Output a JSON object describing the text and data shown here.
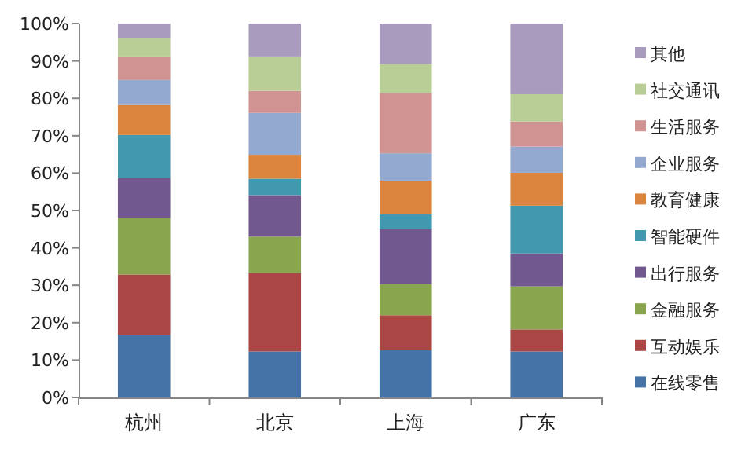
{
  "chart_data": {
    "type": "bar",
    "stacked": true,
    "legend": "right",
    "categories": [
      "杭州",
      "北京",
      "上海",
      "广东"
    ],
    "ylim": [
      0,
      100
    ],
    "yticks": [
      {
        "value": 0,
        "label": "0%"
      },
      {
        "value": 10,
        "label": "10%"
      },
      {
        "value": 20,
        "label": "20%"
      },
      {
        "value": 30,
        "label": "30%"
      },
      {
        "value": 40,
        "label": "40%"
      },
      {
        "value": 50,
        "label": "50%"
      },
      {
        "value": 60,
        "label": "60%"
      },
      {
        "value": 70,
        "label": "70%"
      },
      {
        "value": 80,
        "label": "80%"
      },
      {
        "value": 90,
        "label": "90%"
      },
      {
        "value": 100,
        "label": "100%"
      }
    ],
    "series": [
      {
        "name": "在线零售",
        "color": "#4572a7",
        "values": [
          16.8,
          12.3,
          12.6,
          12.3
        ]
      },
      {
        "name": "互动娱乐",
        "color": "#aa4643",
        "values": [
          16.1,
          21.0,
          9.4,
          5.9
        ]
      },
      {
        "name": "金融服务",
        "color": "#89a54e",
        "values": [
          15.1,
          9.7,
          8.3,
          11.5
        ]
      },
      {
        "name": "出行服务",
        "color": "#71588f",
        "values": [
          10.7,
          11.1,
          14.7,
          8.8
        ]
      },
      {
        "name": "智能硬件",
        "color": "#4198af",
        "values": [
          11.5,
          4.4,
          4.0,
          12.8
        ]
      },
      {
        "name": "教育健康",
        "color": "#db843d",
        "values": [
          8.0,
          6.4,
          9.0,
          8.8
        ]
      },
      {
        "name": "企业服务",
        "color": "#93a9cf",
        "values": [
          6.7,
          11.2,
          7.3,
          7.0
        ]
      },
      {
        "name": "生活服务",
        "color": "#d19392",
        "values": [
          6.3,
          5.9,
          16.1,
          6.7
        ]
      },
      {
        "name": "社交通讯",
        "color": "#b9cd96",
        "values": [
          5.0,
          9.2,
          7.8,
          7.3
        ]
      },
      {
        "name": "其他",
        "color": "#a99bbd",
        "values": [
          3.8,
          8.8,
          10.8,
          18.9
        ]
      }
    ]
  }
}
